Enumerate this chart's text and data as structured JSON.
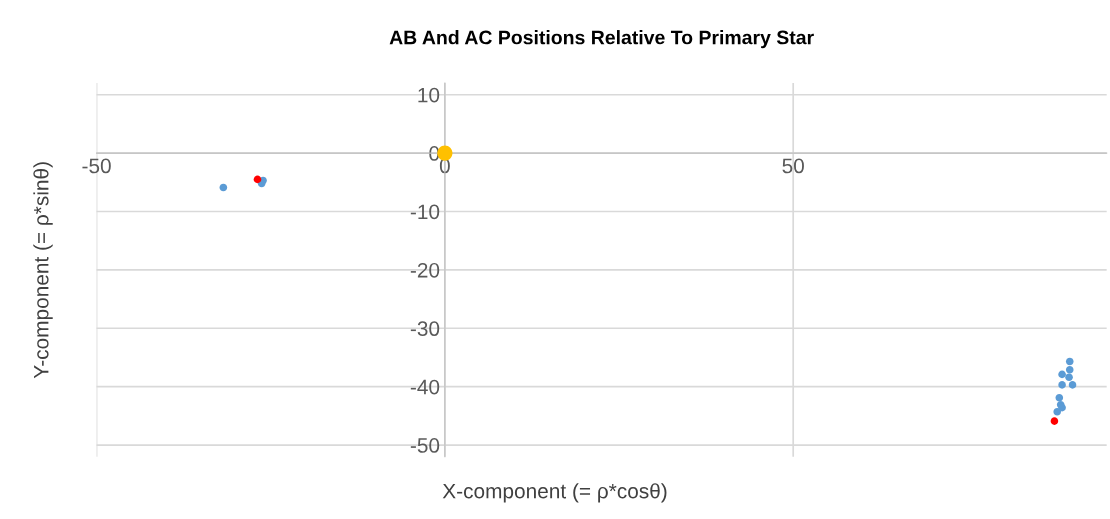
{
  "chart_data": {
    "type": "scatter",
    "title": "AB And AC Positions Relative To Primary Star",
    "xlabel": "X-component (= ρ*cosθ)",
    "ylabel": "Y-component (= ρ*sinθ)",
    "xlim": [
      -50,
      95
    ],
    "ylim": [
      -52,
      12
    ],
    "xticks": [
      -50,
      0,
      50
    ],
    "yticks": [
      -50,
      -40,
      -30,
      -20,
      -10,
      0,
      10
    ],
    "grid": true,
    "marker": "circle",
    "series": [
      {
        "color": "#5b9bd5",
        "x": [
          -31.8,
          -26.3,
          -26.1,
          89.7,
          89.7,
          88.6,
          89.6,
          88.6,
          90.1,
          88.2,
          88.4,
          87.9,
          88.6
        ],
        "values": [
          -5.9,
          -5.2,
          -4.7,
          -35.7,
          -37.1,
          -37.9,
          -38.4,
          -39.7,
          -39.7,
          -41.9,
          -43.1,
          -44.3,
          -43.6
        ]
      },
      {
        "color": "#ff0000",
        "x": [
          -26.9,
          87.5
        ],
        "values": [
          -4.5,
          -45.9
        ]
      },
      {
        "color": "#ffc000",
        "x": [
          0
        ],
        "values": [
          0
        ]
      }
    ]
  }
}
